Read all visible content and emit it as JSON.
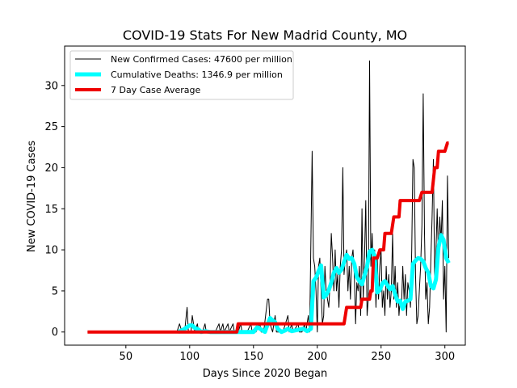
{
  "chart_data": {
    "type": "line",
    "title": "COVID-19 Stats For New Madrid County, MO",
    "xlabel": "Days Since 2020 Began",
    "ylabel": "New COVID-19 Cases",
    "xlim": [
      2,
      316
    ],
    "ylim": [
      -1.6,
      34.8
    ],
    "x_ticks": [
      50,
      100,
      150,
      200,
      250,
      300
    ],
    "y_ticks": [
      0,
      5,
      10,
      15,
      20,
      25,
      30
    ],
    "grid": false,
    "legend_position": "upper-left",
    "series": [
      {
        "name": "New Confirmed Cases: 47600 per million",
        "color": "#000000",
        "width": 1,
        "points": [
          [
            20,
            0
          ],
          [
            90,
            0
          ],
          [
            92,
            1
          ],
          [
            94,
            0
          ],
          [
            96,
            0
          ],
          [
            98,
            3
          ],
          [
            99,
            0
          ],
          [
            101,
            0
          ],
          [
            102,
            2
          ],
          [
            104,
            0
          ],
          [
            106,
            1
          ],
          [
            107,
            0
          ],
          [
            110,
            0
          ],
          [
            112,
            1
          ],
          [
            113,
            0
          ],
          [
            116,
            0
          ],
          [
            120,
            0
          ],
          [
            123,
            1
          ],
          [
            124,
            0
          ],
          [
            126,
            1
          ],
          [
            127,
            0
          ],
          [
            130,
            1
          ],
          [
            131,
            0
          ],
          [
            134,
            1
          ],
          [
            135,
            0
          ],
          [
            138,
            0
          ],
          [
            140,
            1
          ],
          [
            141,
            0
          ],
          [
            145,
            0
          ],
          [
            148,
            1
          ],
          [
            149,
            0
          ],
          [
            152,
            0
          ],
          [
            155,
            1
          ],
          [
            156,
            0
          ],
          [
            158,
            0
          ],
          [
            161,
            4
          ],
          [
            162,
            4
          ],
          [
            163,
            1
          ],
          [
            165,
            0
          ],
          [
            167,
            2
          ],
          [
            168,
            0
          ],
          [
            170,
            0
          ],
          [
            173,
            0
          ],
          [
            175,
            1
          ],
          [
            177,
            2
          ],
          [
            178,
            0
          ],
          [
            180,
            1
          ],
          [
            181,
            0
          ],
          [
            185,
            1
          ],
          [
            186,
            0
          ],
          [
            188,
            0
          ],
          [
            190,
            1
          ],
          [
            191,
            0
          ],
          [
            193,
            2
          ],
          [
            194,
            0
          ],
          [
            196,
            22
          ],
          [
            197,
            9
          ],
          [
            198,
            8
          ],
          [
            199,
            5
          ],
          [
            200,
            0
          ],
          [
            201,
            8
          ],
          [
            202,
            9
          ],
          [
            203,
            5
          ],
          [
            204,
            1
          ],
          [
            205,
            2
          ],
          [
            206,
            8
          ],
          [
            207,
            5
          ],
          [
            208,
            4
          ],
          [
            209,
            3
          ],
          [
            210,
            6
          ],
          [
            211,
            12
          ],
          [
            212,
            9
          ],
          [
            213,
            5
          ],
          [
            214,
            10
          ],
          [
            215,
            5
          ],
          [
            216,
            7
          ],
          [
            217,
            3
          ],
          [
            218,
            8
          ],
          [
            219,
            10
          ],
          [
            220,
            20
          ],
          [
            221,
            7
          ],
          [
            222,
            9
          ],
          [
            223,
            10
          ],
          [
            224,
            5
          ],
          [
            225,
            8
          ],
          [
            226,
            4
          ],
          [
            227,
            9
          ],
          [
            228,
            10
          ],
          [
            229,
            7
          ],
          [
            230,
            1
          ],
          [
            231,
            6
          ],
          [
            232,
            5
          ],
          [
            233,
            8
          ],
          [
            234,
            2
          ],
          [
            235,
            15
          ],
          [
            236,
            4
          ],
          [
            237,
            9
          ],
          [
            238,
            16
          ],
          [
            239,
            2
          ],
          [
            240,
            4
          ],
          [
            241,
            33
          ],
          [
            242,
            8
          ],
          [
            243,
            12
          ],
          [
            244,
            6
          ],
          [
            245,
            10
          ],
          [
            246,
            3
          ],
          [
            247,
            9
          ],
          [
            248,
            4
          ],
          [
            249,
            8
          ],
          [
            250,
            10
          ],
          [
            251,
            3
          ],
          [
            252,
            5
          ],
          [
            253,
            2
          ],
          [
            254,
            8
          ],
          [
            255,
            4
          ],
          [
            256,
            7
          ],
          [
            257,
            3
          ],
          [
            258,
            5
          ],
          [
            259,
            12
          ],
          [
            260,
            4
          ],
          [
            261,
            8
          ],
          [
            262,
            3
          ],
          [
            263,
            6
          ],
          [
            264,
            2
          ],
          [
            265,
            4
          ],
          [
            266,
            3
          ],
          [
            267,
            8
          ],
          [
            268,
            4
          ],
          [
            269,
            7
          ],
          [
            270,
            2
          ],
          [
            271,
            6
          ],
          [
            272,
            5
          ],
          [
            273,
            3
          ],
          [
            274,
            10
          ],
          [
            275,
            21
          ],
          [
            276,
            20
          ],
          [
            277,
            7
          ],
          [
            278,
            1
          ],
          [
            279,
            2
          ],
          [
            280,
            5
          ],
          [
            281,
            8
          ],
          [
            282,
            13
          ],
          [
            283,
            29
          ],
          [
            284,
            12
          ],
          [
            285,
            4
          ],
          [
            286,
            6
          ],
          [
            287,
            1
          ],
          [
            288,
            3
          ],
          [
            289,
            9
          ],
          [
            290,
            14
          ],
          [
            291,
            21
          ],
          [
            292,
            6
          ],
          [
            293,
            10
          ],
          [
            294,
            15
          ],
          [
            295,
            9
          ],
          [
            296,
            14
          ],
          [
            297,
            11
          ],
          [
            298,
            16
          ],
          [
            299,
            4
          ],
          [
            300,
            8
          ],
          [
            301,
            0
          ],
          [
            302,
            19
          ],
          [
            303,
            9
          ]
        ]
      },
      {
        "name": "Cumulative Deaths: 1346.9 per million",
        "color": "#00ffff",
        "width": 5,
        "points": [
          [
            91,
            0
          ],
          [
            94,
            0.2
          ],
          [
            97,
            0.5
          ],
          [
            100,
            0.8
          ],
          [
            102,
            0.8
          ],
          [
            104,
            0.5
          ],
          [
            107,
            0.3
          ],
          [
            109,
            0
          ],
          [
            112,
            0.1
          ],
          [
            116,
            0
          ],
          [
            150,
            0
          ],
          [
            153,
            0.6
          ],
          [
            156,
            0.3
          ],
          [
            159,
            0
          ],
          [
            161,
            0.9
          ],
          [
            163,
            1.7
          ],
          [
            165,
            1.4
          ],
          [
            167,
            1.2
          ],
          [
            169,
            0.4
          ],
          [
            172,
            0
          ],
          [
            175,
            0.2
          ],
          [
            177,
            0.4
          ],
          [
            180,
            0.1
          ],
          [
            183,
            0.2
          ],
          [
            186,
            0.3
          ],
          [
            189,
            0.4
          ],
          [
            192,
            0.1
          ],
          [
            195,
            0.4
          ],
          [
            197,
            6.2
          ],
          [
            199,
            6.6
          ],
          [
            201,
            7.4
          ],
          [
            203,
            8.1
          ],
          [
            205,
            4.2
          ],
          [
            207,
            4.5
          ],
          [
            209,
            5.1
          ],
          [
            211,
            6.0
          ],
          [
            213,
            7.2
          ],
          [
            215,
            7.8
          ],
          [
            217,
            7.2
          ],
          [
            219,
            7.6
          ],
          [
            221,
            8.5
          ],
          [
            223,
            9.4
          ],
          [
            225,
            8.9
          ],
          [
            227,
            9.0
          ],
          [
            229,
            8.3
          ],
          [
            231,
            6.7
          ],
          [
            233,
            6.2
          ],
          [
            235,
            5.8
          ],
          [
            237,
            6.9
          ],
          [
            239,
            8.0
          ],
          [
            241,
            9.8
          ],
          [
            243,
            10.0
          ],
          [
            245,
            9.2
          ],
          [
            247,
            4.8
          ],
          [
            249,
            5.1
          ],
          [
            251,
            5.9
          ],
          [
            253,
            6.2
          ],
          [
            255,
            5.7
          ],
          [
            257,
            5.2
          ],
          [
            259,
            5.6
          ],
          [
            261,
            4.6
          ],
          [
            263,
            3.7
          ],
          [
            265,
            3.8
          ],
          [
            267,
            2.8
          ],
          [
            269,
            3.7
          ],
          [
            271,
            3.8
          ],
          [
            273,
            4.0
          ],
          [
            275,
            8.3
          ],
          [
            277,
            8.7
          ],
          [
            279,
            9.0
          ],
          [
            281,
            8.9
          ],
          [
            283,
            8.6
          ],
          [
            285,
            7.8
          ],
          [
            287,
            7.2
          ],
          [
            289,
            5.6
          ],
          [
            291,
            5.3
          ],
          [
            293,
            6.4
          ],
          [
            295,
            10.3
          ],
          [
            297,
            11.8
          ],
          [
            299,
            11.2
          ],
          [
            301,
            9.0
          ],
          [
            303,
            8.4
          ]
        ]
      },
      {
        "name": "7 Day Case Average",
        "color": "#ee0000",
        "width": 4,
        "points": [
          [
            20,
            0
          ],
          [
            137,
            0
          ],
          [
            138,
            1
          ],
          [
            221,
            1
          ],
          [
            223,
            3
          ],
          [
            234,
            3
          ],
          [
            235,
            4
          ],
          [
            241,
            4
          ],
          [
            242,
            5
          ],
          [
            243,
            5
          ],
          [
            244,
            9
          ],
          [
            247,
            9
          ],
          [
            249,
            10
          ],
          [
            252,
            10
          ],
          [
            253,
            12
          ],
          [
            258,
            12
          ],
          [
            260,
            14
          ],
          [
            264,
            14
          ],
          [
            265,
            16
          ],
          [
            278,
            16
          ],
          [
            280,
            16
          ],
          [
            282,
            17
          ],
          [
            290,
            17
          ],
          [
            292,
            20
          ],
          [
            294,
            20
          ],
          [
            295,
            22
          ],
          [
            300,
            22
          ],
          [
            302,
            23
          ],
          [
            303,
            23
          ]
        ]
      }
    ]
  }
}
